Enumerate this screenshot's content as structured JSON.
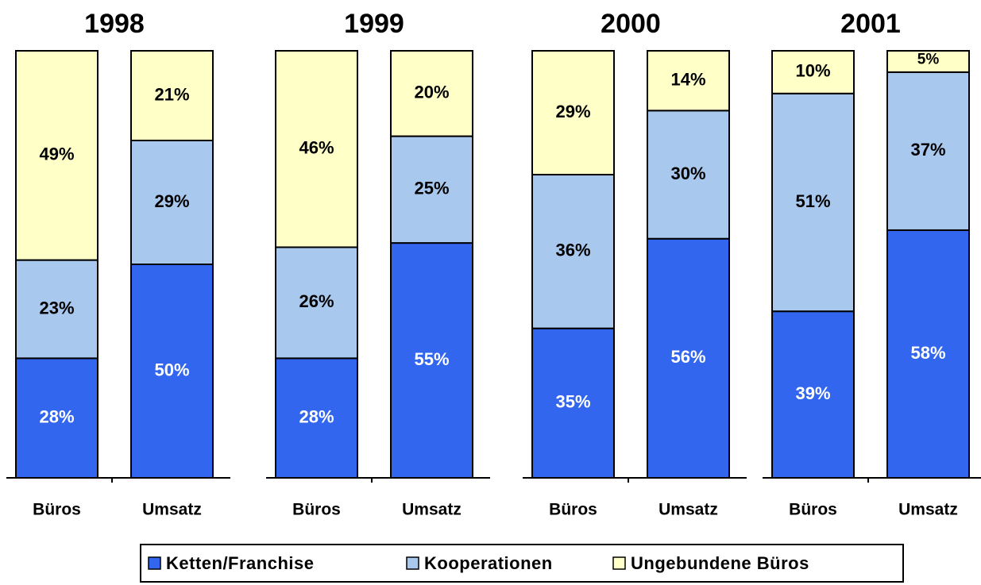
{
  "chart_data": [
    {
      "type": "bar",
      "stacked": true,
      "title": "1998",
      "categories": [
        "Büros",
        "Umsatz"
      ],
      "ylim": [
        0,
        100
      ],
      "series": [
        {
          "name": "Ketten/Franchise",
          "color": "#3366ee",
          "values": [
            28,
            50
          ],
          "value_labels": [
            "28%",
            "50%"
          ]
        },
        {
          "name": "Kooperationen",
          "color": "#a8c8ee",
          "values": [
            23,
            29
          ],
          "value_labels": [
            "23%",
            "29%"
          ]
        },
        {
          "name": "Ungebundene Büros",
          "color": "#ffffc8",
          "values": [
            49,
            21
          ],
          "value_labels": [
            "49%",
            "21%"
          ]
        }
      ]
    },
    {
      "type": "bar",
      "stacked": true,
      "title": "1999",
      "categories": [
        "Büros",
        "Umsatz"
      ],
      "ylim": [
        0,
        100
      ],
      "series": [
        {
          "name": "Ketten/Franchise",
          "color": "#3366ee",
          "values": [
            28,
            55
          ],
          "value_labels": [
            "28%",
            "55%"
          ]
        },
        {
          "name": "Kooperationen",
          "color": "#a8c8ee",
          "values": [
            26,
            25
          ],
          "value_labels": [
            "26%",
            "25%"
          ]
        },
        {
          "name": "Ungebundene Büros",
          "color": "#ffffc8",
          "values": [
            46,
            20
          ],
          "value_labels": [
            "46%",
            "20%"
          ]
        }
      ]
    },
    {
      "type": "bar",
      "stacked": true,
      "title": "2000",
      "categories": [
        "Büros",
        "Umsatz"
      ],
      "ylim": [
        0,
        100
      ],
      "series": [
        {
          "name": "Ketten/Franchise",
          "color": "#3366ee",
          "values": [
            35,
            56
          ],
          "value_labels": [
            "35%",
            "56%"
          ]
        },
        {
          "name": "Kooperationen",
          "color": "#a8c8ee",
          "values": [
            36,
            30
          ],
          "value_labels": [
            "36%",
            "30%"
          ]
        },
        {
          "name": "Ungebundene Büros",
          "color": "#ffffc8",
          "values": [
            29,
            14
          ],
          "value_labels": [
            "29%",
            "14%"
          ]
        }
      ]
    },
    {
      "type": "bar",
      "stacked": true,
      "title": "2001",
      "categories": [
        "Büros",
        "Umsatz"
      ],
      "ylim": [
        0,
        100
      ],
      "series": [
        {
          "name": "Ketten/Franchise",
          "color": "#3366ee",
          "values": [
            39,
            58
          ],
          "value_labels": [
            "39%",
            "58%"
          ]
        },
        {
          "name": "Kooperationen",
          "color": "#a8c8ee",
          "values": [
            51,
            37
          ],
          "value_labels": [
            "51%",
            "37%"
          ]
        },
        {
          "name": "Ungebundene Büros",
          "color": "#ffffc8",
          "values": [
            10,
            5
          ],
          "value_labels": [
            "10%",
            "5%"
          ]
        }
      ]
    }
  ]
}
